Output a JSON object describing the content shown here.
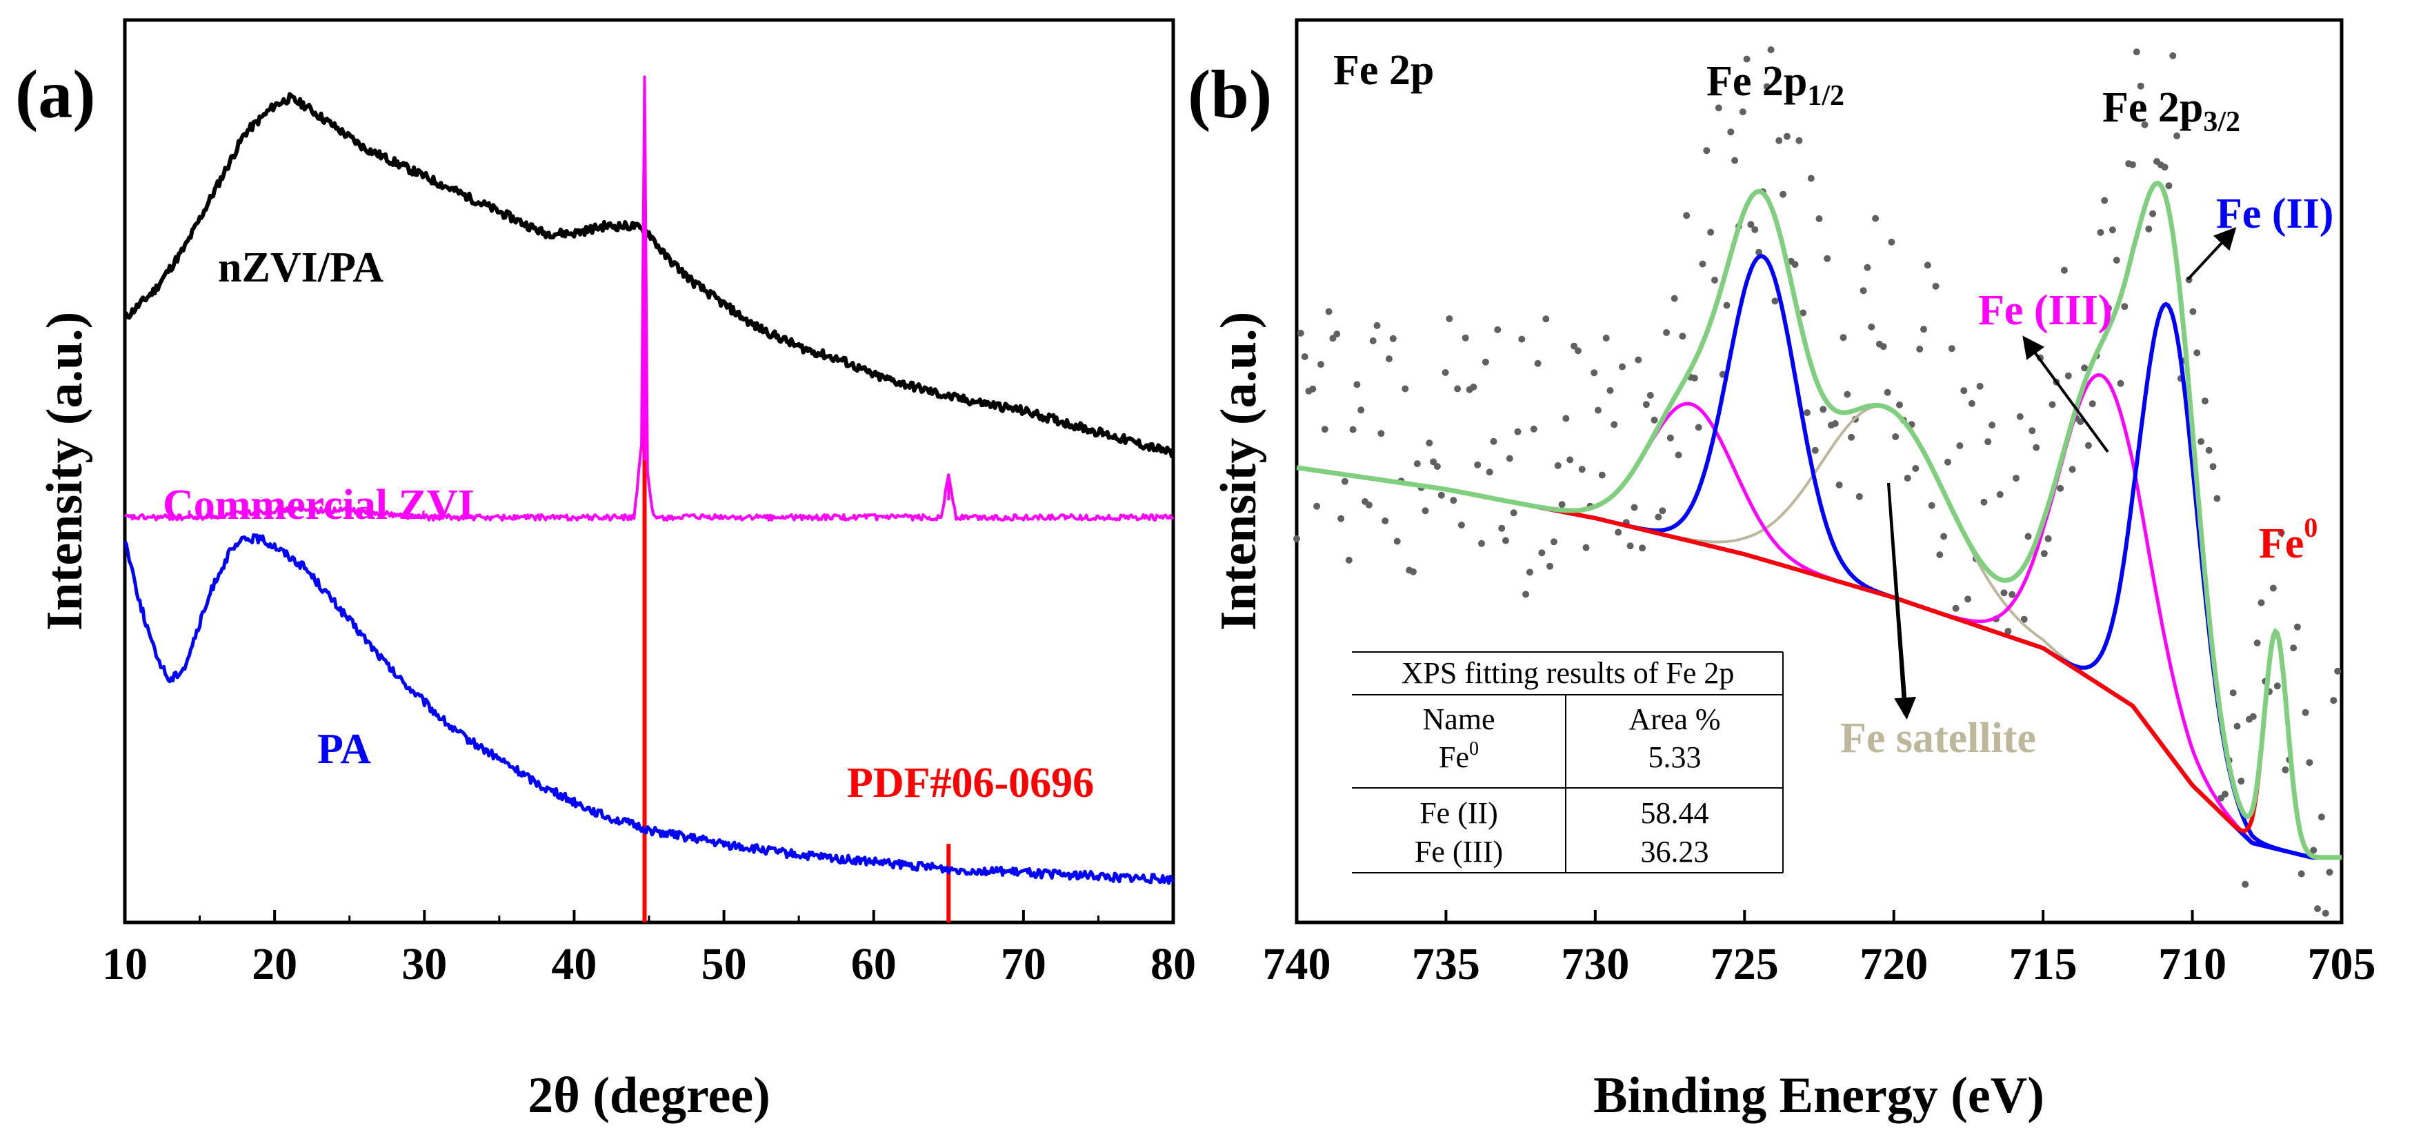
{
  "chart_data": [
    {
      "panel": "(a)",
      "type": "line",
      "xlabel": "2θ (degree)",
      "ylabel": "Intensity (a.u.)",
      "xlim": [
        10,
        80
      ],
      "xticks": [
        10,
        20,
        30,
        40,
        50,
        60,
        70,
        80
      ],
      "yticks_shown": false,
      "series": [
        {
          "name": "nZVI/PA",
          "color": "#000000",
          "x": [
            10,
            12,
            14,
            16,
            18,
            20,
            21,
            22,
            24,
            26,
            28,
            30,
            32,
            34,
            36,
            38,
            40,
            42,
            44,
            45,
            46,
            48,
            50,
            52,
            55,
            58,
            60,
            65,
            70,
            75,
            80
          ],
          "y": [
            0.8,
            0.84,
            0.9,
            0.98,
            1.06,
            1.1,
            1.11,
            1.1,
            1.07,
            1.04,
            1.02,
            1.0,
            0.98,
            0.96,
            0.94,
            0.92,
            0.92,
            0.93,
            0.93,
            0.92,
            0.89,
            0.85,
            0.82,
            0.79,
            0.76,
            0.74,
            0.72,
            0.69,
            0.67,
            0.64,
            0.61
          ]
        },
        {
          "name": "Commercial ZVI",
          "color": "#ff00ff",
          "x": [
            10,
            15,
            20,
            25,
            30,
            35,
            40,
            44,
            44.5,
            44.7,
            44.9,
            45.3,
            50,
            55,
            60,
            64.5,
            65,
            65.5,
            70,
            75,
            80
          ],
          "y": [
            0.52,
            0.52,
            0.53,
            0.53,
            0.52,
            0.52,
            0.52,
            0.52,
            0.62,
            1.14,
            0.58,
            0.52,
            0.52,
            0.52,
            0.52,
            0.52,
            0.58,
            0.52,
            0.52,
            0.52,
            0.52
          ],
          "spikes": [
            {
              "x": 44.7,
              "y": 1.14
            },
            {
              "x": 65.0,
              "y": 0.58
            }
          ]
        },
        {
          "name": "PA",
          "color": "#0000ff",
          "x": [
            10,
            11,
            12,
            13,
            14,
            15,
            16,
            17,
            18,
            19,
            20,
            22,
            24,
            26,
            28,
            30,
            32,
            35,
            38,
            40,
            42,
            45,
            50,
            55,
            60,
            65,
            70,
            75,
            80
          ],
          "y": [
            0.49,
            0.4,
            0.33,
            0.29,
            0.31,
            0.37,
            0.43,
            0.47,
            0.49,
            0.49,
            0.48,
            0.45,
            0.4,
            0.35,
            0.3,
            0.26,
            0.22,
            0.18,
            0.14,
            0.12,
            0.1,
            0.08,
            0.06,
            0.045,
            0.035,
            0.025,
            0.02,
            0.015,
            0.01
          ]
        }
      ],
      "reference": {
        "name": "PDF#06-0696",
        "color": "#ff0000",
        "lines": [
          {
            "x": 44.7,
            "height": 1.0
          },
          {
            "x": 65.0,
            "height": 0.14
          }
        ]
      },
      "annotations": {
        "nzvi_label": "nZVI/PA",
        "czvi_label": "Commercial ZVI",
        "pa_label": "PA",
        "pdf_label": "PDF#06-0696"
      },
      "ylim": [
        -0.05,
        1.22
      ]
    },
    {
      "panel": "(b)",
      "type": "line",
      "xlabel": "Binding Energy (eV)",
      "ylabel": "Intensity (a.u.)",
      "xlim": [
        740,
        705
      ],
      "xticks": [
        740,
        735,
        730,
        725,
        720,
        715,
        710,
        705
      ],
      "yticks_shown": false,
      "background": {
        "x": [
          740,
          735,
          730,
          725,
          720,
          715,
          712,
          710,
          708,
          706,
          705
        ],
        "y": [
          0.58,
          0.55,
          0.51,
          0.46,
          0.4,
          0.33,
          0.25,
          0.14,
          0.06,
          0.04,
          0.04
        ]
      },
      "components": [
        {
          "name": "Fe (II) 2p3/2",
          "color": "#0000ff",
          "center": 710.8,
          "height": 0.62,
          "fwhm": 2.3
        },
        {
          "name": "Fe (II) 2p1/2",
          "color": "#0000ff",
          "center": 724.4,
          "height": 0.42,
          "fwhm": 2.7
        },
        {
          "name": "Fe (III) 2p3/2",
          "color": "#ff00ff",
          "center": 713.0,
          "height": 0.43,
          "fwhm": 3.4
        },
        {
          "name": "Fe (III) 2p1/2",
          "color": "#ff00ff",
          "center": 726.8,
          "height": 0.19,
          "fwhm": 3.4
        },
        {
          "name": "Fe satellite",
          "color": "#bdb79c",
          "center": 720.3,
          "height": 0.26,
          "fwhm": 5.0
        },
        {
          "name": "Fe0",
          "color": "#ff0000",
          "center": 707.2,
          "height": 0.3,
          "fwhm": 0.9
        }
      ],
      "envelope_color": "#7fcf7f",
      "raw_data_color": "#606060",
      "ylim": [
        -0.05,
        1.2
      ],
      "labels": {
        "region": "Fe 2p",
        "p12_main": "Fe 2p",
        "p12_sub": "1/2",
        "p32_main": "Fe 2p",
        "p32_sub": "3/2",
        "fe2": "Fe (II)",
        "fe3": "Fe (III)",
        "fe0_main": "Fe",
        "fe0_sup": "0",
        "sat": "Fe satellite"
      },
      "inset_table": {
        "title": "XPS fitting results of Fe 2p",
        "headers": [
          "Name",
          "Area %"
        ],
        "rows": [
          {
            "name": "Fe",
            "name_sup": "0",
            "value": "5.33"
          },
          {
            "name": "Fe (II)",
            "name_sup": "",
            "value": "58.44"
          },
          {
            "name": "Fe (III)",
            "name_sup": "",
            "value": "36.23"
          }
        ]
      }
    }
  ]
}
